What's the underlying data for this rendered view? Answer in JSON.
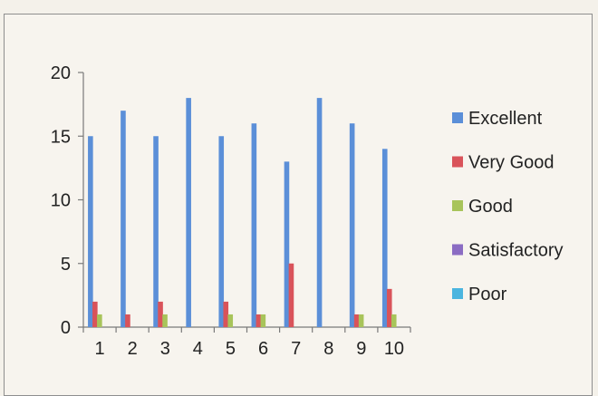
{
  "chart_data": {
    "type": "bar",
    "categories": [
      "1",
      "2",
      "3",
      "4",
      "5",
      "6",
      "7",
      "8",
      "9",
      "10"
    ],
    "series": [
      {
        "name": "Excellent",
        "values": [
          15,
          17,
          15,
          18,
          15,
          16,
          13,
          18,
          16,
          14
        ]
      },
      {
        "name": "Very Good",
        "values": [
          2,
          1,
          2,
          0,
          2,
          1,
          5,
          0,
          1,
          3
        ]
      },
      {
        "name": "Good",
        "values": [
          1,
          0,
          1,
          0,
          1,
          1,
          0,
          0,
          1,
          1
        ]
      },
      {
        "name": "Satisfactory",
        "values": [
          0,
          0,
          0,
          0,
          0,
          0,
          0,
          0,
          0,
          0
        ]
      },
      {
        "name": "Poor",
        "values": [
          0,
          0,
          0,
          0,
          0,
          0,
          0,
          0,
          0,
          0
        ]
      }
    ],
    "ylim": [
      0,
      20
    ],
    "yticks": [
      0,
      5,
      10,
      15,
      20
    ],
    "colors": [
      "#5b8fd8",
      "#d9535a",
      "#a8c45a",
      "#8b6cc3",
      "#4bb5df"
    ],
    "legend_position": "right",
    "grid": false
  }
}
